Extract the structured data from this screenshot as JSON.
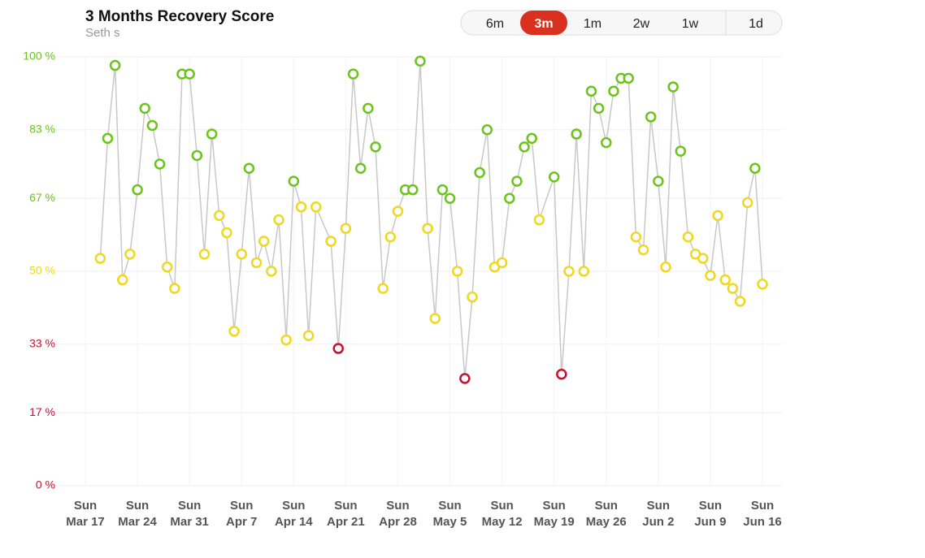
{
  "header": {
    "title": "3 Months Recovery Score",
    "subtitle": "Seth s",
    "range_options": [
      "6m",
      "3m",
      "1m",
      "2w",
      "1w",
      "1d"
    ],
    "selected": "3m"
  },
  "chart_data": {
    "type": "line",
    "x": [
      "Mar 19",
      "Mar 20",
      "Mar 21",
      "Mar 22",
      "Mar 23",
      "Mar 24",
      "Mar 25",
      "Mar 26",
      "Mar 27",
      "Mar 28",
      "Mar 29",
      "Mar 30",
      "Mar 31",
      "Apr 1",
      "Apr 2",
      "Apr 3",
      "Apr 4",
      "Apr 5",
      "Apr 6",
      "Apr 7",
      "Apr 8",
      "Apr 9",
      "Apr 10",
      "Apr 11",
      "Apr 12",
      "Apr 13",
      "Apr 14",
      "Apr 15",
      "Apr 16",
      "Apr 17",
      "Apr 19",
      "Apr 20",
      "Apr 21",
      "Apr 22",
      "Apr 23",
      "Apr 24",
      "Apr 25",
      "Apr 26",
      "Apr 27",
      "Apr 28",
      "Apr 29",
      "Apr 30",
      "May 1",
      "May 2",
      "May 3",
      "May 4",
      "May 5",
      "May 6",
      "May 7",
      "May 8",
      "May 9",
      "May 10",
      "May 11",
      "May 12",
      "May 13",
      "May 14",
      "May 15",
      "May 16",
      "May 17",
      "May 19",
      "May 20",
      "May 21",
      "May 22",
      "May 23",
      "May 24",
      "May 25",
      "May 26",
      "May 27",
      "May 28",
      "May 29",
      "May 30",
      "May 31",
      "Jun 1",
      "Jun 2",
      "Jun 3",
      "Jun 4",
      "Jun 5",
      "Jun 6",
      "Jun 7",
      "Jun 8",
      "Jun 9",
      "Jun 10",
      "Jun 11",
      "Jun 12",
      "Jun 13",
      "Jun 14",
      "Jun 15",
      "Jun 16"
    ],
    "values": [
      53,
      81,
      98,
      48,
      54,
      69,
      88,
      84,
      75,
      51,
      46,
      96,
      96,
      77,
      54,
      82,
      63,
      59,
      36,
      54,
      74,
      52,
      57,
      50,
      62,
      34,
      71,
      65,
      35,
      65,
      57,
      32,
      60,
      96,
      74,
      88,
      79,
      46,
      58,
      64,
      69,
      69,
      99,
      60,
      39,
      69,
      67,
      50,
      25,
      44,
      73,
      83,
      51,
      52,
      67,
      71,
      79,
      81,
      62,
      72,
      26,
      50,
      82,
      50,
      92,
      88,
      80,
      92,
      95,
      95,
      58,
      55,
      86,
      71,
      51,
      93,
      78,
      58,
      54,
      53,
      49,
      63,
      48,
      46,
      43,
      66,
      74,
      47
    ],
    "line_color": "#c8c8c8",
    "zones": [
      {
        "min": 0,
        "color": "#c41230"
      },
      {
        "min": 34,
        "color": "#f0d81c"
      },
      {
        "min": 67,
        "color": "#6cc31b"
      }
    ],
    "ylim": [
      0,
      100
    ],
    "yticks": [
      {
        "value": 0,
        "label": "0 %"
      },
      {
        "value": 17,
        "label": "17 %"
      },
      {
        "value": 33,
        "label": "33 %"
      },
      {
        "value": 50,
        "label": "50 %"
      },
      {
        "value": 67,
        "label": "67 %"
      },
      {
        "value": 83,
        "label": "83 %"
      },
      {
        "value": 100,
        "label": "100 %"
      }
    ],
    "xlim": [
      "Mar 17",
      "Jun 16"
    ],
    "xticks": [
      {
        "day": "Sun",
        "date": "Mar 17"
      },
      {
        "day": "Sun",
        "date": "Mar 24"
      },
      {
        "day": "Sun",
        "date": "Mar 31"
      },
      {
        "day": "Sun",
        "date": "Apr 7"
      },
      {
        "day": "Sun",
        "date": "Apr 14"
      },
      {
        "day": "Sun",
        "date": "Apr 21"
      },
      {
        "day": "Sun",
        "date": "Apr 28"
      },
      {
        "day": "Sun",
        "date": "May 5"
      },
      {
        "day": "Sun",
        "date": "May 12"
      },
      {
        "day": "Sun",
        "date": "May 19"
      },
      {
        "day": "Sun",
        "date": "May 26"
      },
      {
        "day": "Sun",
        "date": "Jun 2"
      },
      {
        "day": "Sun",
        "date": "Jun 9"
      },
      {
        "day": "Sun",
        "date": "Jun 16"
      }
    ],
    "grid": true
  }
}
